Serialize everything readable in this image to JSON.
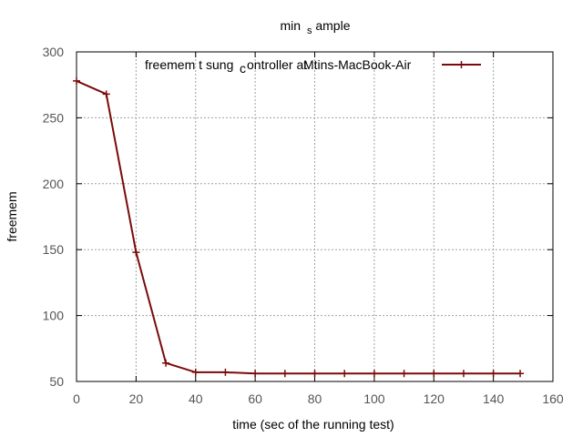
{
  "chart_data": {
    "type": "line",
    "title": "min",
    "title_subscript": "s",
    "title_rest": "ample",
    "xlabel": "time (sec of the running test)",
    "ylabel": "freemem",
    "xlim": [
      0,
      160
    ],
    "ylim": [
      50,
      300
    ],
    "xticks": [
      0,
      20,
      40,
      60,
      80,
      100,
      120,
      140,
      160
    ],
    "yticks": [
      50,
      100,
      150,
      200,
      250,
      300
    ],
    "grid": true,
    "legend_position": "top-right",
    "legend_text": {
      "part1": "freemem t",
      "part2": "sung",
      "subscript": "c",
      "part3": "ontroller at",
      "part4": "Mtins-MacBook-Air"
    },
    "series": [
      {
        "color": "#7a0a0a",
        "marker": "plus",
        "x": [
          0,
          10,
          20,
          30,
          40,
          50,
          60,
          70,
          80,
          90,
          100,
          110,
          120,
          130,
          140,
          149
        ],
        "values": [
          278,
          268,
          148,
          64,
          57,
          57,
          56,
          56,
          56,
          56,
          56,
          56,
          56,
          56,
          56,
          56
        ]
      }
    ]
  }
}
